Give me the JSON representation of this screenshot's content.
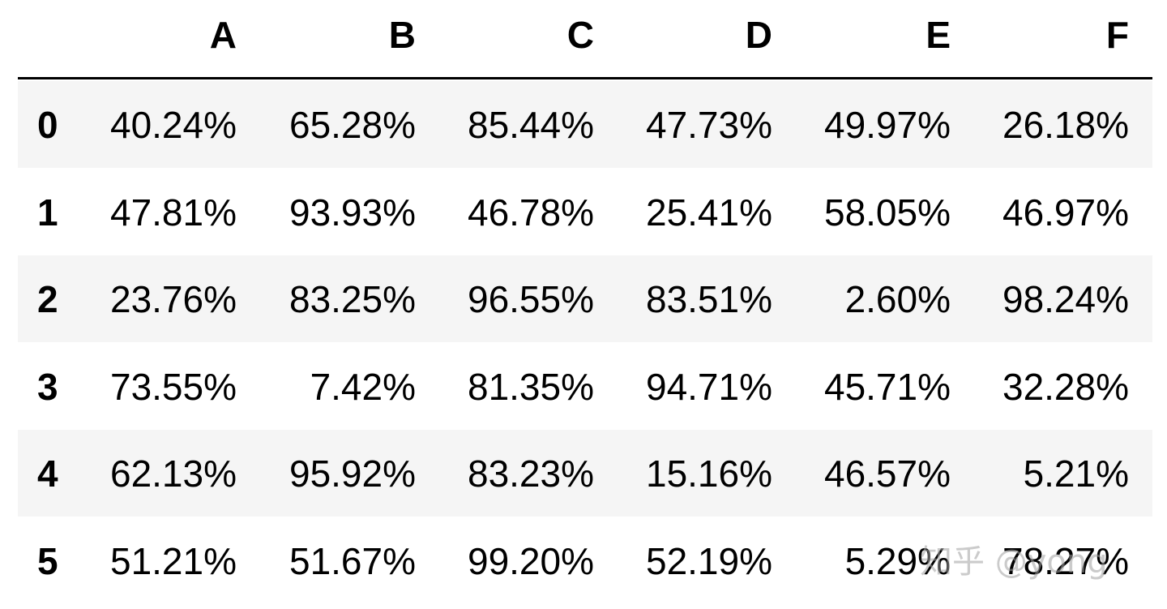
{
  "table": {
    "columns": [
      "A",
      "B",
      "C",
      "D",
      "E",
      "F"
    ],
    "index": [
      "0",
      "1",
      "2",
      "3",
      "4",
      "5"
    ],
    "rows": [
      [
        "40.24%",
        "65.28%",
        "85.44%",
        "47.73%",
        "49.97%",
        "26.18%"
      ],
      [
        "47.81%",
        "93.93%",
        "46.78%",
        "25.41%",
        "58.05%",
        "46.97%"
      ],
      [
        "23.76%",
        "83.25%",
        "96.55%",
        "83.51%",
        "2.60%",
        "98.24%"
      ],
      [
        "73.55%",
        "7.42%",
        "81.35%",
        "94.71%",
        "45.71%",
        "32.28%"
      ],
      [
        "62.13%",
        "95.92%",
        "83.23%",
        "15.16%",
        "46.57%",
        "5.21%"
      ],
      [
        "51.21%",
        "51.67%",
        "99.20%",
        "52.19%",
        "5.29%",
        "78.27%"
      ]
    ]
  },
  "watermark": "知乎 @yong"
}
